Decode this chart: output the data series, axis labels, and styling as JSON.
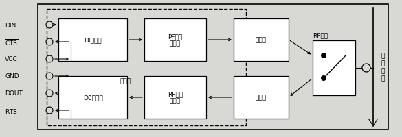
{
  "bg_color": "#e8e8e8",
  "labels_left": [
    "DIN",
    "CTS",
    "VCC",
    "GND",
    "DOUT",
    "RTS"
  ],
  "label_di": "DI缓冲器",
  "label_pf": "PF发送\n缓冲器",
  "label_tx": "发送器",
  "label_do": "D0缓冲器",
  "label_rf_buf": "RF接收\n缓冲器",
  "label_rx": "接收器",
  "label_rf_switch": "RF开关",
  "label_processor": "处理器",
  "label_antenna": "天\n线\n端\n口",
  "font_size": 6.5
}
